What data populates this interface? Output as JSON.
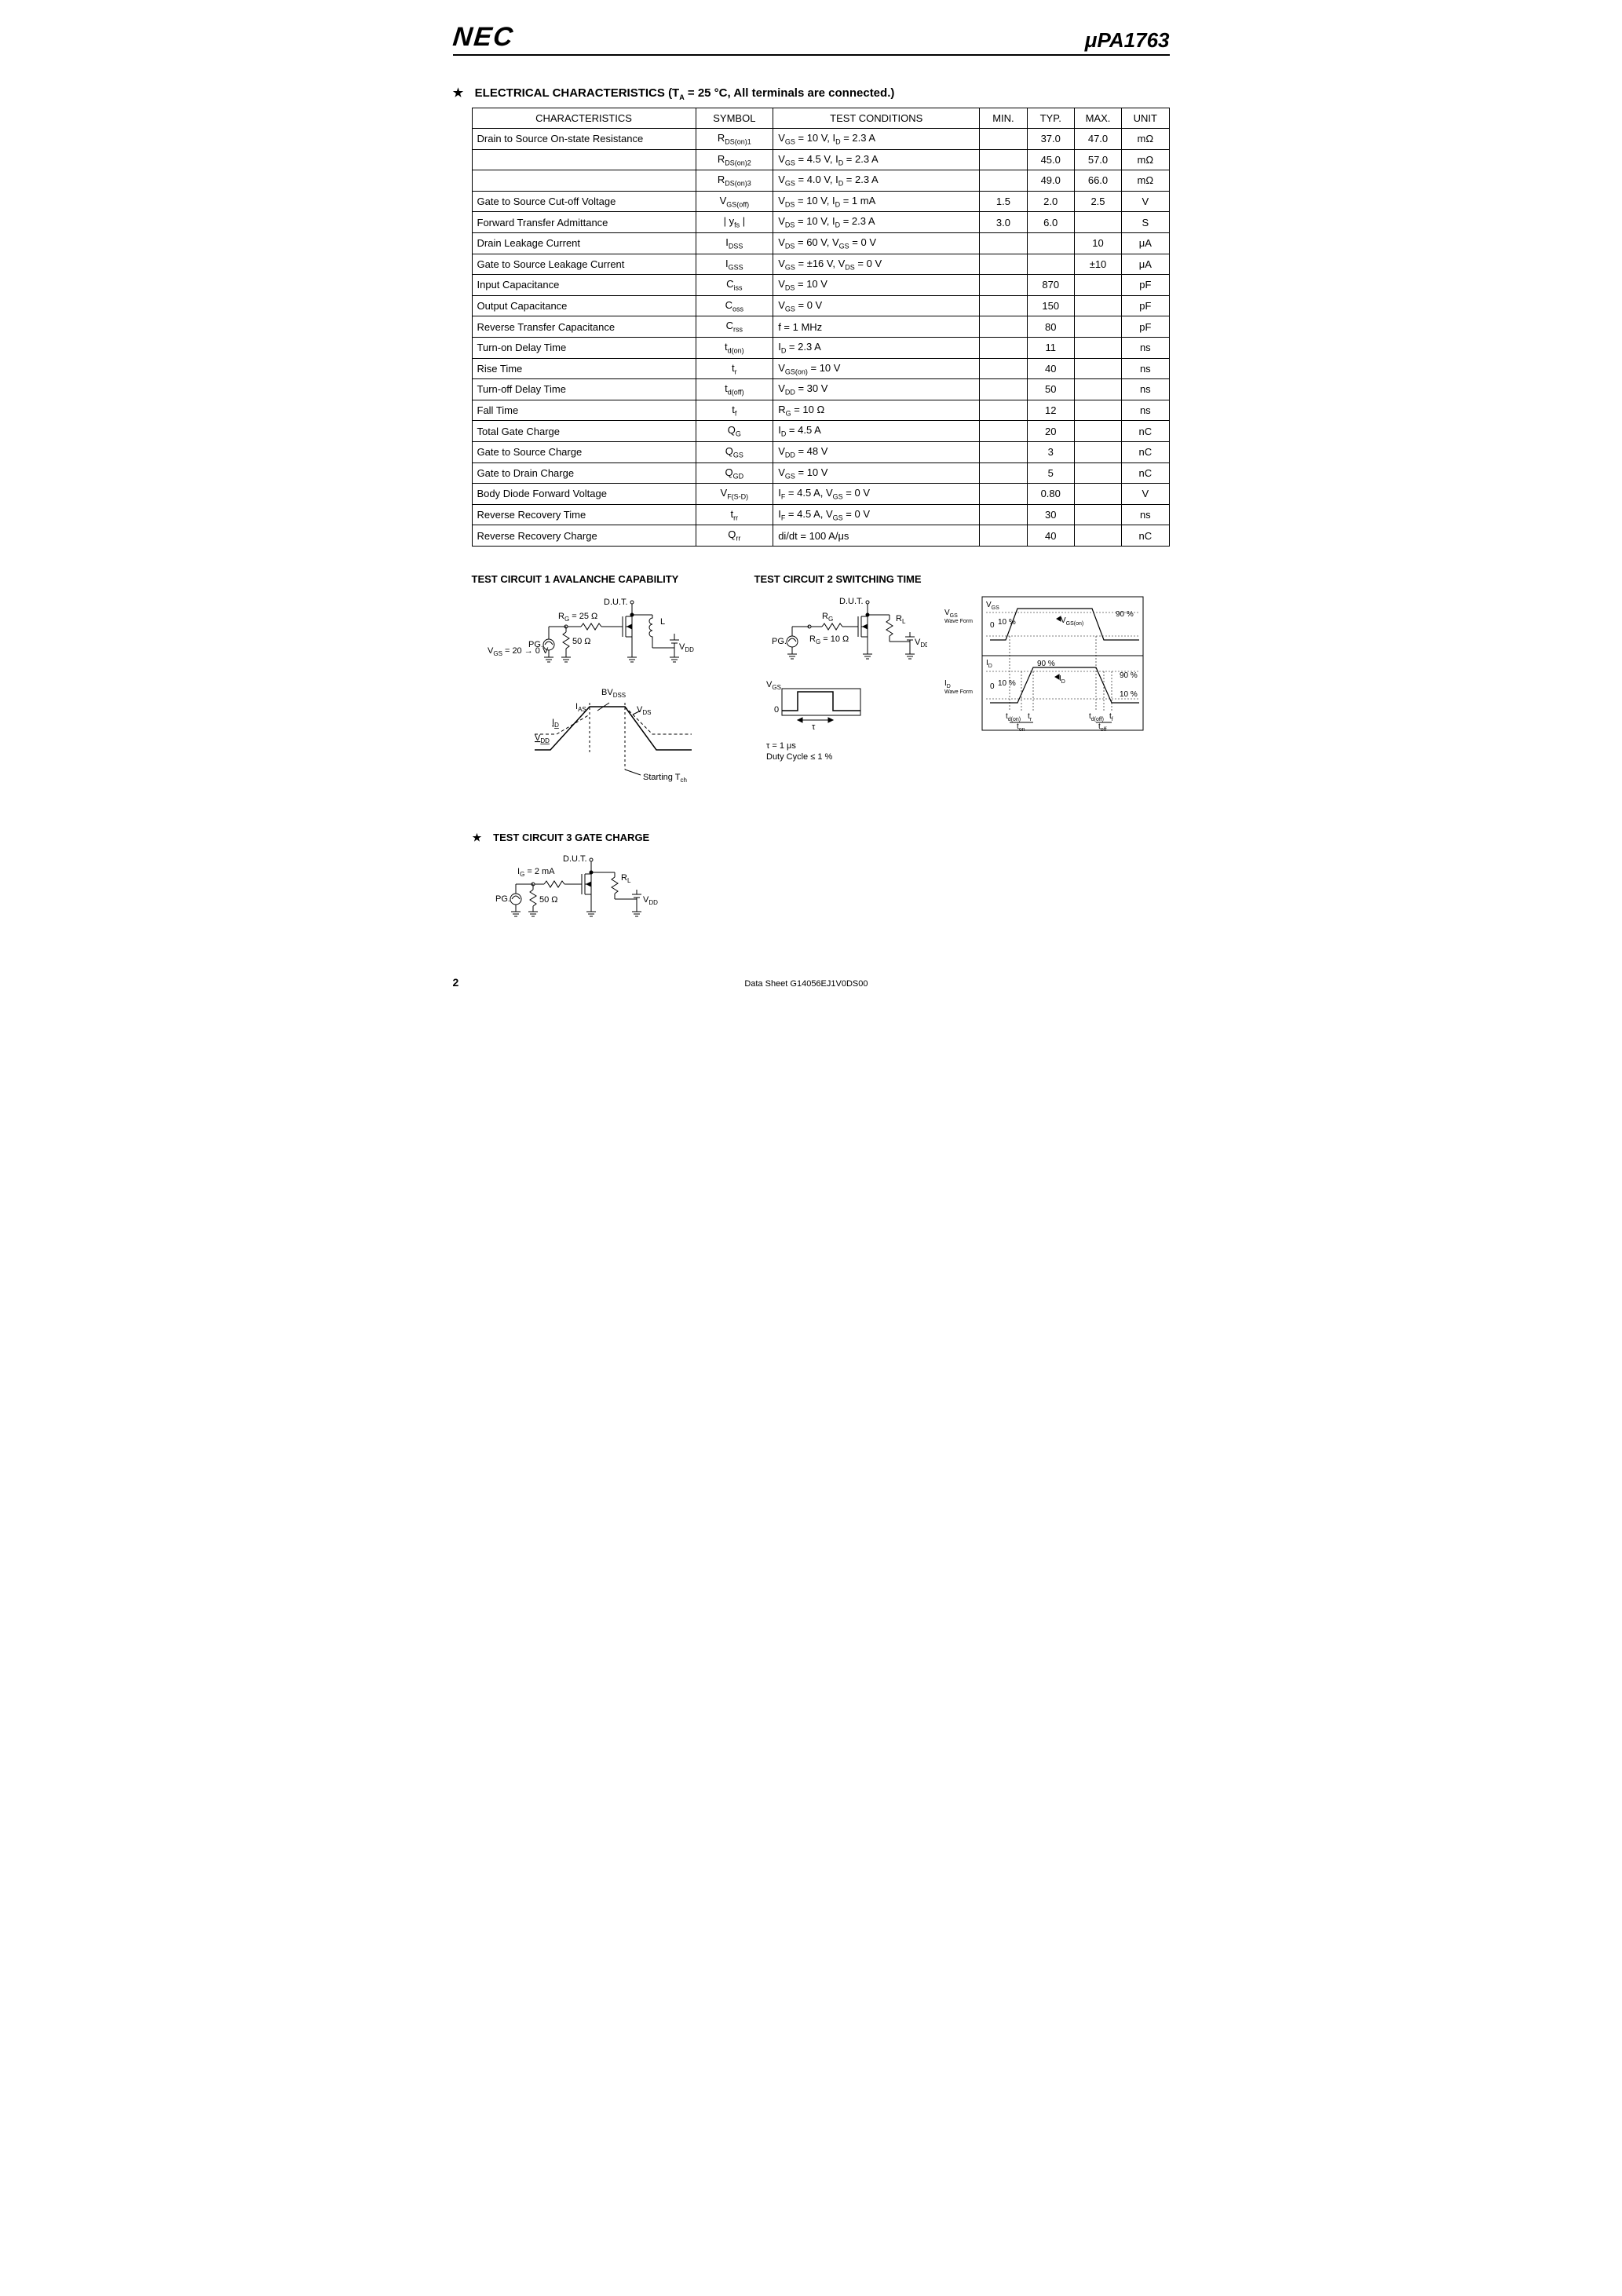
{
  "header": {
    "logo": "NEC",
    "part_prefix": "μ",
    "part": "PA1763"
  },
  "section": {
    "star": "★",
    "title_main": "ELECTRICAL CHARACTERISTICS (T",
    "title_sub": "A",
    "title_rest": " = 25 °C, All terminals are connected.)"
  },
  "table": {
    "headers": {
      "char": "CHARACTERISTICS",
      "sym": "SYMBOL",
      "cond": "TEST CONDITIONS",
      "min": "MIN.",
      "typ": "TYP.",
      "max": "MAX.",
      "unit": "UNIT"
    },
    "rows": [
      {
        "char": "Drain to Source On-state Resistance",
        "sym": "R<sub>DS(on)1</sub>",
        "cond": "V<sub>GS</sub> = 10 V, I<sub>D</sub> = 2.3 A",
        "min": "",
        "typ": "37.0",
        "max": "47.0",
        "unit": "mΩ"
      },
      {
        "char": "",
        "sym": "R<sub>DS(on)2</sub>",
        "cond": "V<sub>GS</sub> = 4.5 V, I<sub>D</sub> = 2.3 A",
        "min": "",
        "typ": "45.0",
        "max": "57.0",
        "unit": "mΩ"
      },
      {
        "char": "",
        "sym": "R<sub>DS(on)3</sub>",
        "cond": "V<sub>GS</sub> = 4.0 V, I<sub>D</sub> = 2.3 A",
        "min": "",
        "typ": "49.0",
        "max": "66.0",
        "unit": "mΩ"
      },
      {
        "char": "Gate to Source Cut-off Voltage",
        "sym": "V<sub>GS(off)</sub>",
        "cond": "V<sub>DS</sub> = 10 V, I<sub>D</sub> = 1 mA",
        "min": "1.5",
        "typ": "2.0",
        "max": "2.5",
        "unit": "V"
      },
      {
        "char": "Forward Transfer Admittance",
        "sym": "| y<sub>fs</sub> |",
        "cond": "V<sub>DS</sub> = 10 V, I<sub>D</sub> = 2.3 A",
        "min": "3.0",
        "typ": "6.0",
        "max": "",
        "unit": "S"
      },
      {
        "char": "Drain Leakage Current",
        "sym": "I<sub>DSS</sub>",
        "cond": "V<sub>DS</sub> = 60 V, V<sub>GS</sub> = 0 V",
        "min": "",
        "typ": "",
        "max": "10",
        "unit": "μA"
      },
      {
        "char": "Gate to Source Leakage Current",
        "sym": "I<sub>GSS</sub>",
        "cond": "V<sub>GS</sub> = ±16 V, V<sub>DS</sub> = 0 V",
        "min": "",
        "typ": "",
        "max": "±10",
        "unit": "μA"
      },
      {
        "char": "Input Capacitance",
        "sym": "C<sub>iss</sub>",
        "cond": "V<sub>DS</sub> = 10 V",
        "min": "",
        "typ": "870",
        "max": "",
        "unit": "pF"
      },
      {
        "char": "Output Capacitance",
        "sym": "C<sub>oss</sub>",
        "cond": "V<sub>GS</sub> = 0 V",
        "min": "",
        "typ": "150",
        "max": "",
        "unit": "pF"
      },
      {
        "char": "Reverse Transfer Capacitance",
        "sym": "C<sub>rss</sub>",
        "cond": "f = 1 MHz",
        "min": "",
        "typ": "80",
        "max": "",
        "unit": "pF"
      },
      {
        "char": "Turn-on Delay Time",
        "sym": "t<sub>d(on)</sub>",
        "cond": "I<sub>D</sub> = 2.3 A",
        "min": "",
        "typ": "11",
        "max": "",
        "unit": "ns"
      },
      {
        "char": "Rise Time",
        "sym": "t<sub>r</sub>",
        "cond": "V<sub>GS(on)</sub> = 10 V",
        "min": "",
        "typ": "40",
        "max": "",
        "unit": "ns"
      },
      {
        "char": "Turn-off Delay Time",
        "sym": "t<sub>d(off)</sub>",
        "cond": "V<sub>DD</sub> = 30 V",
        "min": "",
        "typ": "50",
        "max": "",
        "unit": "ns"
      },
      {
        "char": "Fall Time",
        "sym": "t<sub>f</sub>",
        "cond": "R<sub>G</sub> = 10 Ω",
        "min": "",
        "typ": "12",
        "max": "",
        "unit": "ns"
      },
      {
        "char": "Total Gate Charge",
        "sym": "Q<sub>G</sub>",
        "cond": "I<sub>D</sub> = 4.5 A",
        "min": "",
        "typ": "20",
        "max": "",
        "unit": "nC"
      },
      {
        "char": "Gate to Source Charge",
        "sym": "Q<sub>GS</sub>",
        "cond": "V<sub>DD</sub> = 48 V",
        "min": "",
        "typ": "3",
        "max": "",
        "unit": "nC"
      },
      {
        "char": "Gate to Drain Charge",
        "sym": "Q<sub>GD</sub>",
        "cond": "V<sub>GS</sub> = 10 V",
        "min": "",
        "typ": "5",
        "max": "",
        "unit": "nC"
      },
      {
        "char": "Body Diode Forward Voltage",
        "sym": "V<sub>F(S-D)</sub>",
        "cond": "I<sub>F</sub> = 4.5 A, V<sub>GS</sub> = 0 V",
        "min": "",
        "typ": "0.80",
        "max": "",
        "unit": "V"
      },
      {
        "char": "Reverse Recovery Time",
        "sym": "t<sub>rr</sub>",
        "cond": "I<sub>F</sub> = 4.5 A, V<sub>GS</sub> = 0 V",
        "min": "",
        "typ": "30",
        "max": "",
        "unit": "ns"
      },
      {
        "char": "Reverse Recovery Charge",
        "sym": "Q<sub>rr</sub>",
        "cond": "di/dt = 100 A/μs",
        "min": "",
        "typ": "40",
        "max": "",
        "unit": "nC"
      }
    ]
  },
  "circuits": {
    "tc1_title": "TEST CIRCUIT 1  AVALANCHE CAPABILITY",
    "tc2_title": "TEST CIRCUIT 2  SWITCHING TIME",
    "tc3_title": "TEST CIRCUIT 3  GATE CHARGE",
    "tc1": {
      "dut": "D.U.T.",
      "rg": "R",
      "rg_sub": "G",
      "rg_val": " = 25 Ω",
      "L": "L",
      "pg": "PG.",
      "r50": "50 Ω",
      "vdd": "V",
      "vdd_sub": "DD",
      "vgs_line": "V",
      "vgs_sub": "GS",
      "vgs_val": " = 20 → 0 V",
      "bvdss": "BV",
      "bvdss_sub": "DSS",
      "ias": "I",
      "ias_sub": "AS",
      "id": "I",
      "id_sub": "D",
      "vds": "V",
      "vds_sub": "DS",
      "start": "Starting T",
      "start_sub": "ch"
    },
    "tc2": {
      "dut": "D.U.T.",
      "rl": "R",
      "rl_sub": "L",
      "pg": "PG.",
      "rg": "R",
      "rg_sub": "G",
      "rg_val": " = 10 Ω",
      "vdd": "V",
      "vdd_sub": "DD",
      "vgs": "V",
      "vgs_sub": "GS",
      "zero": "0",
      "tau": "τ",
      "tau_note": "τ = 1 μs",
      "duty": "Duty Cycle ≤ 1 %",
      "wf_vgs": "V",
      "wf_vgs_sub": "GS",
      "wf_id": "I",
      "wf_id_sub": "D",
      "vgson": "V",
      "vgson_sub": "GS(on)",
      "p90": "90 %",
      "p10": "10 %",
      "td_on": "t",
      "td_on_sub": "d(on)",
      "tr": "t",
      "tr_sub": "r",
      "td_off": "t",
      "td_off_sub": "d(off)",
      "tf": "t",
      "tf_sub": "f",
      "ton": "t",
      "ton_sub": "on",
      "toff": "t",
      "toff_sub": "off",
      "wave": "Wave Form"
    },
    "tc3": {
      "dut": "D.U.T.",
      "ig": "I",
      "ig_sub": "G",
      "ig_val": " = 2 mA",
      "rl": "R",
      "rl_sub": "L",
      "pg": "PG.",
      "r50": "50 Ω",
      "vdd": "V",
      "vdd_sub": "DD"
    },
    "star": "★"
  },
  "footer": {
    "page": "2",
    "ds": "Data Sheet  G14056EJ1V0DS00"
  }
}
